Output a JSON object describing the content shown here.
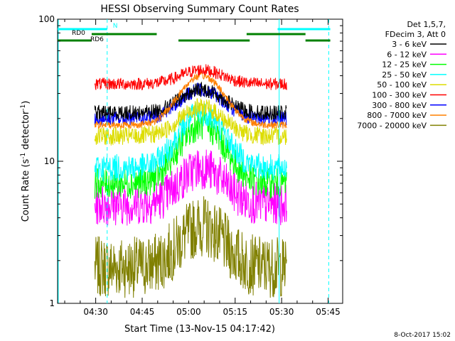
{
  "chart_data": {
    "type": "line",
    "title": "HESSI Observing Summary Count Rates",
    "xlabel": "Start Time (13-Nov-15 04:17:42)",
    "ylabel_main": "Count Rate (s",
    "ylabel_sup1": "-1",
    "ylabel_mid": " detector",
    "ylabel_sup2": "-1",
    "ylabel_end": ")",
    "yscale": "log",
    "ylim": [
      1,
      100
    ],
    "xlim_minutes": [
      0,
      92
    ],
    "ytick_labels": [
      {
        "value": 1,
        "label": "1"
      },
      {
        "value": 10,
        "label": "10"
      },
      {
        "value": 100,
        "label": "100"
      }
    ],
    "xtick_labels": [
      {
        "minutes": 12.3,
        "label": "04:30"
      },
      {
        "minutes": 27.3,
        "label": "04:45"
      },
      {
        "minutes": 42.3,
        "label": "05:00"
      },
      {
        "minutes": 57.3,
        "label": "05:15"
      },
      {
        "minutes": 72.3,
        "label": "05:30"
      },
      {
        "minutes": 87.3,
        "label": "05:45"
      }
    ],
    "legend_header": [
      "Det 1,5,7,",
      "FDecim 3, Att 0"
    ],
    "legend_position": "right",
    "data_start_minutes": 12,
    "data_end_minutes": 74,
    "series": [
      {
        "name": "3 - 6 keV",
        "color": "#000000",
        "base": 22,
        "peak": 32,
        "noise": 0.12
      },
      {
        "name": "6 - 12 keV",
        "color": "#ff00ff",
        "base": 5,
        "peak": 9,
        "noise": 0.35
      },
      {
        "name": "12 - 25 keV",
        "color": "#00ff00",
        "base": 7,
        "peak": 18,
        "noise": 0.25
      },
      {
        "name": "25 - 50 keV",
        "color": "#00ffff",
        "base": 9,
        "peak": 22,
        "noise": 0.22
      },
      {
        "name": "50 - 100 keV",
        "color": "#dddd00",
        "base": 15,
        "peak": 24,
        "noise": 0.15
      },
      {
        "name": "100 - 300 keV",
        "color": "#ff0000",
        "base": 35,
        "peak": 44,
        "noise": 0.1
      },
      {
        "name": "300 - 800 keV",
        "color": "#0000ff",
        "base": 20,
        "peak": 32,
        "noise": 0.12
      },
      {
        "name": "800 - 7000 keV",
        "color": "#ff8000",
        "base": 18,
        "peak": 40,
        "noise": 0.06
      },
      {
        "name": "7000 - 20000 keV",
        "color": "#808000",
        "base": 1.8,
        "peak": 3.5,
        "noise": 0.5
      }
    ],
    "flags": [
      {
        "label": "N",
        "color": "#00ffff",
        "segments": [
          [
            0,
            16
          ],
          [
            71,
            88
          ]
        ]
      },
      {
        "label": "RD0",
        "color": "#008000",
        "segments": [
          [
            11,
            32
          ],
          [
            61,
            80
          ]
        ]
      },
      {
        "label": "RD6",
        "color": "#008000",
        "segments": [
          [
            0,
            11
          ],
          [
            39,
            62
          ],
          [
            80,
            88
          ]
        ]
      }
    ],
    "vlines_minutes": [
      16,
      71.5,
      87.5
    ],
    "footer_date": "8-Oct-2017 15:02"
  }
}
